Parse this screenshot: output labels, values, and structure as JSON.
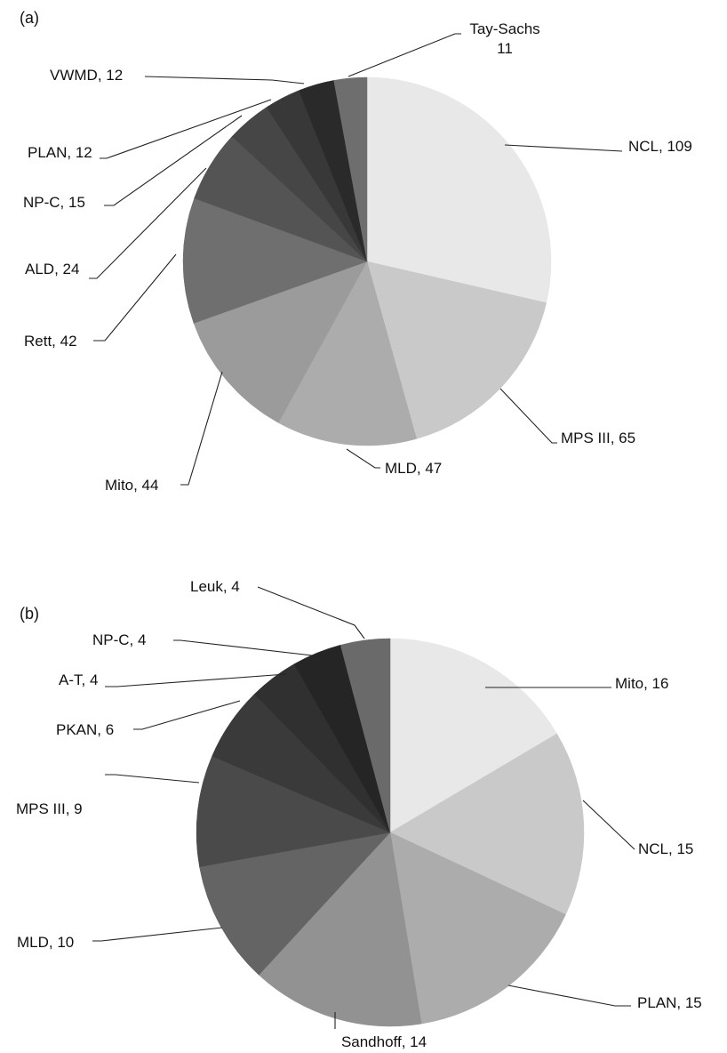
{
  "chart_data": [
    {
      "type": "pie",
      "panel_label": "(a)",
      "slices": [
        {
          "name": "NCL",
          "value": 109,
          "label": "NCL, 109",
          "color": "#e8e8e8"
        },
        {
          "name": "MPS III",
          "value": 65,
          "label": "MPS III, 65",
          "color": "#c9c9c9"
        },
        {
          "name": "MLD",
          "value": 47,
          "label": "MLD, 47",
          "color": "#acacac"
        },
        {
          "name": "Mito",
          "value": 44,
          "label": "Mito, 44",
          "color": "#9b9b9b"
        },
        {
          "name": "Rett",
          "value": 42,
          "label": "Rett, 42",
          "color": "#6f6f6f"
        },
        {
          "name": "ALD",
          "value": 24,
          "label": "ALD, 24",
          "color": "#545454"
        },
        {
          "name": "NP-C",
          "value": 15,
          "label": "NP-C, 15",
          "color": "#464646"
        },
        {
          "name": "PLAN",
          "value": 12,
          "label": "PLAN, 12",
          "color": "#383838"
        },
        {
          "name": "VWMD",
          "value": 12,
          "label": "VWMD, 12",
          "color": "#2a2a2a"
        },
        {
          "name": "Tay-Sachs",
          "value": 11,
          "label": "Tay-Sachs\n11",
          "color": "#6e6e6e"
        }
      ]
    },
    {
      "type": "pie",
      "panel_label": "(b)",
      "slices": [
        {
          "name": "Mito",
          "value": 16,
          "label": "Mito, 16",
          "color": "#e8e8e8"
        },
        {
          "name": "NCL",
          "value": 15,
          "label": "NCL, 15",
          "color": "#c9c9c9"
        },
        {
          "name": "PLAN",
          "value": 15,
          "label": "PLAN, 15",
          "color": "#acacac"
        },
        {
          "name": "Sandhoff",
          "value": 14,
          "label": "Sandhoff, 14",
          "color": "#929292"
        },
        {
          "name": "MLD",
          "value": 10,
          "label": "MLD, 10",
          "color": "#646464"
        },
        {
          "name": "MPS III",
          "value": 9,
          "label": "MPS III, 9",
          "color": "#4a4a4a"
        },
        {
          "name": "PKAN",
          "value": 6,
          "label": "PKAN, 6",
          "color": "#3a3a3a"
        },
        {
          "name": "A-T",
          "value": 4,
          "label": "A-T, 4",
          "color": "#303030"
        },
        {
          "name": "NP-C",
          "value": 4,
          "label": "NP-C, 4",
          "color": "#252525"
        },
        {
          "name": "Leuk",
          "value": 4,
          "label": "Leuk, 4",
          "color": "#6a6a6a"
        }
      ]
    }
  ]
}
